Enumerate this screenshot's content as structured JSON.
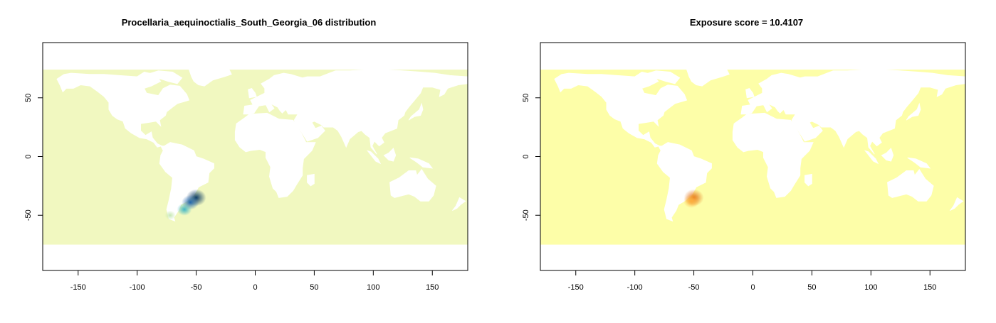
{
  "panels": [
    {
      "id": "distribution",
      "title": "Procellaria_aequinoctialis_South_Georgia_06 distribution",
      "ocean_color": "#f1f8c0",
      "x_ticks": [
        -150,
        -100,
        -50,
        0,
        50,
        100,
        150
      ],
      "y_ticks": [
        -50,
        0,
        50
      ],
      "xlim": [
        -180,
        180
      ],
      "ylim": [
        -97,
        97
      ],
      "hotspots": [
        {
          "lon": -50,
          "lat": -35,
          "color": "#0d3b66",
          "level": 1.0
        },
        {
          "lon": -55,
          "lat": -39,
          "color": "#2166ac",
          "level": 0.8
        },
        {
          "lon": -60,
          "lat": -45,
          "color": "#41b6c4",
          "level": 0.6
        },
        {
          "lon": -72,
          "lat": -50,
          "color": "#c7e9b4",
          "level": 0.3
        }
      ]
    },
    {
      "id": "exposure",
      "title": "Exposure score = 10.4107",
      "ocean_color": "#fdfea8",
      "x_ticks": [
        -150,
        -100,
        -50,
        0,
        50,
        100,
        150
      ],
      "y_ticks": [
        -50,
        0,
        50
      ],
      "xlim": [
        -180,
        180
      ],
      "ylim": [
        -97,
        97
      ],
      "hotspots": [
        {
          "lon": -50,
          "lat": -35,
          "color": "#e3731a",
          "level": 1.0
        },
        {
          "lon": -52,
          "lat": -38,
          "color": "#fdae3b",
          "level": 0.7
        }
      ]
    }
  ]
}
